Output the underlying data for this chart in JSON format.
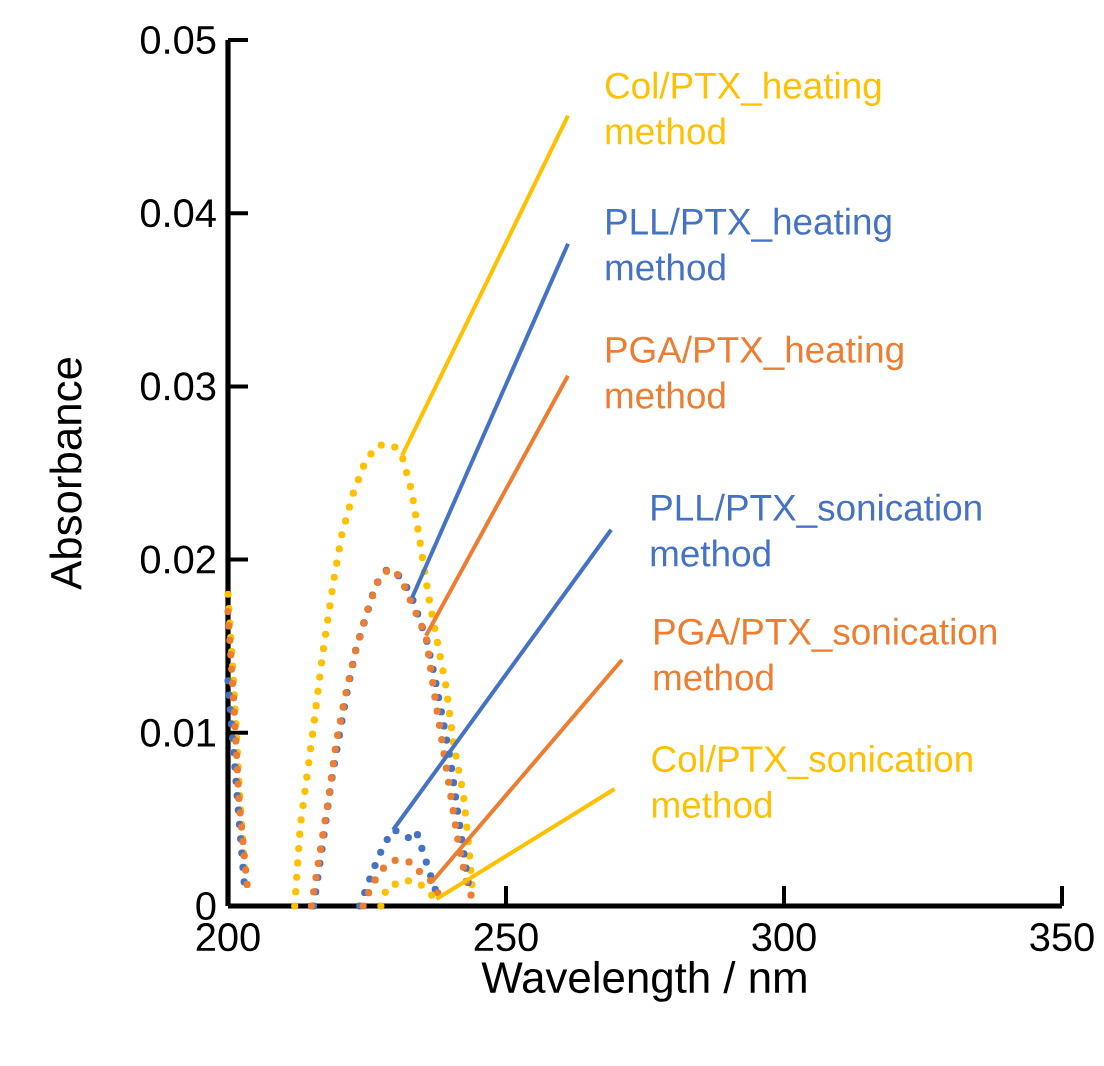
{
  "chart_data": {
    "type": "line",
    "xlabel": "Wavelength / nm",
    "ylabel": "Absorbance",
    "xlim": [
      200,
      350
    ],
    "xticks": [
      200,
      250,
      300,
      350
    ],
    "ylim": [
      0,
      0.05
    ],
    "yticks": [
      0,
      0.01,
      0.02,
      0.03,
      0.04,
      0.05
    ],
    "grid": false,
    "legend": false,
    "line_style": "dotted",
    "series": [
      {
        "name": "Col/PTX_heating method",
        "color": "#ffc000",
        "x": [
          200,
          201,
          202,
          203,
          206,
          212,
          213,
          215.4,
          217,
          219,
          220.5,
          222.5,
          224.5,
          226.5,
          228.3,
          230,
          231.3,
          233,
          234.5,
          236,
          237.5,
          239.2,
          240.5,
          242.3,
          243.3,
          244
        ],
        "values": [
          0.018,
          0.013,
          0.007,
          0.002,
          null,
          0,
          0.0046,
          0.0104,
          0.0145,
          0.0188,
          0.0215,
          0.0238,
          0.0255,
          0.0265,
          0.0267,
          0.0265,
          0.026,
          0.024,
          0.0211,
          0.018,
          0.0155,
          0.0127,
          0.0095,
          0.0065,
          0.0035,
          0.0007
        ]
      },
      {
        "name": "PLL/PTX_heating method",
        "color": "#4472c4",
        "x": [
          200,
          201,
          202,
          203,
          206,
          215.4,
          217,
          218.5,
          220.1,
          221.5,
          223,
          225,
          226.5,
          228.5,
          230,
          231.5,
          233.1,
          234.5,
          235.7,
          237,
          238.5,
          240,
          241.5,
          243.5
        ],
        "values": [
          0.013,
          0.009,
          0.005,
          0.001,
          null,
          0,
          0.0035,
          0.007,
          0.01,
          0.0125,
          0.0148,
          0.0169,
          0.0185,
          0.0194,
          0.0193,
          0.0188,
          0.0178,
          0.0165,
          0.0154,
          0.0135,
          0.011,
          0.0084,
          0.005,
          0.0007
        ]
      },
      {
        "name": "PGA/PTX_heating method",
        "color": "#ed7d31",
        "x": [
          200,
          201,
          202,
          203.5,
          206,
          215,
          216.5,
          218,
          219.5,
          221,
          223,
          225,
          227,
          229,
          231,
          233,
          235.6,
          237,
          238.5,
          240,
          241.5,
          243,
          244.5
        ],
        "values": [
          0.017,
          0.012,
          0.006,
          0.001,
          null,
          0,
          0.003,
          0.006,
          0.0095,
          0.012,
          0.0148,
          0.017,
          0.0188,
          0.0195,
          0.019,
          0.0175,
          0.0156,
          0.0125,
          0.0095,
          0.0065,
          0.0035,
          0.0012,
          0
        ]
      },
      {
        "name": "PLL/PTX_sonication method",
        "color": "#4472c4",
        "x": [
          223.7,
          226,
          228,
          229.7,
          231.5,
          233,
          234,
          235.7,
          237,
          238
        ],
        "values": [
          0,
          0.002,
          0.0035,
          0.0044,
          0.0042,
          0.0038,
          0.0042,
          0.0025,
          0.0012,
          0.0003
        ]
      },
      {
        "name": "PGA/PTX_sonication method",
        "color": "#ed7d31",
        "x": [
          224.3,
          226,
          228,
          229.5,
          231,
          233,
          235,
          236.7,
          238
        ],
        "values": [
          0,
          0.0013,
          0.0022,
          0.0026,
          0.0027,
          0.0025,
          0.0018,
          0.0014,
          0.0006
        ]
      },
      {
        "name": "Col/PTX_sonication method",
        "color": "#ffc000",
        "x": [
          227.5,
          228.3,
          229.5,
          231,
          232.7,
          234.5,
          236,
          237.5
        ],
        "values": [
          0,
          0.0008,
          0.0013,
          0.0012,
          0.0015,
          0.0013,
          0.0008,
          0.0004
        ]
      }
    ]
  }
}
